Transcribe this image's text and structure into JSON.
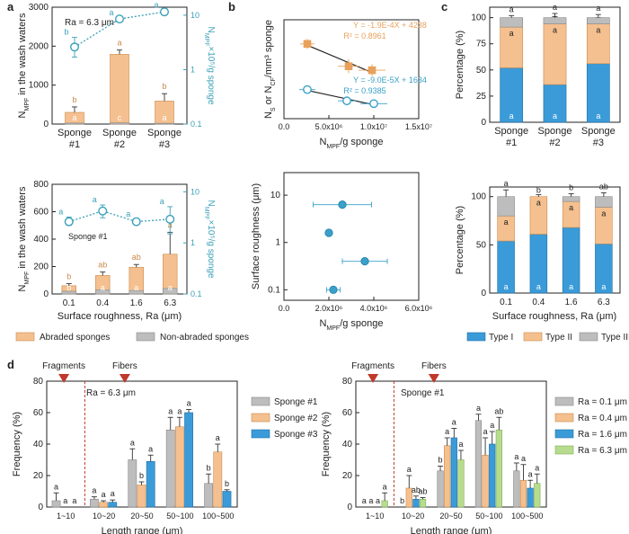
{
  "figure": {
    "panel_labels": [
      "a",
      "b",
      "c",
      "d"
    ]
  },
  "chart_data": [
    {
      "id": "a_top",
      "type": "bar",
      "categories": [
        "Sponge\n#1",
        "Sponge\n#2",
        "Sponge\n#3"
      ],
      "series": [
        {
          "name": "Abraded sponges",
          "values": [
            300,
            1790,
            590
          ],
          "errors": [
            140,
            110,
            190
          ],
          "letters": [
            "b",
            "a",
            "b"
          ]
        },
        {
          "name": "Non-abraded sponges",
          "values": [
            25,
            30,
            20
          ],
          "errors": [
            8,
            8,
            8
          ],
          "letters": [
            "a",
            "c",
            "a"
          ]
        }
      ],
      "line": {
        "name": "N_MPF x 10^5/g sponge",
        "values": [
          2.6,
          8.5,
          11.5
        ],
        "errors_low": [
          0.9,
          0.6,
          0.7
        ],
        "errors_high": [
          1.3,
          0.4,
          0.7
        ],
        "letters": [
          "b",
          "a",
          "a"
        ]
      },
      "annotation": "Ra = 6.3 μm",
      "ylabel": "N_MPF in the wash waters",
      "y2label": "N_MPF x 10^5/g sponge",
      "ylim": [
        0,
        3000
      ],
      "yticks": [
        0,
        1000,
        2000,
        3000
      ],
      "y2lim": [
        0.1,
        14
      ],
      "y2ticks": [
        0.1,
        1,
        10
      ]
    },
    {
      "id": "a_bottom",
      "type": "bar",
      "categories": [
        "0.1",
        "0.4",
        "1.6",
        "6.3"
      ],
      "series": [
        {
          "name": "Abraded sponges",
          "values": [
            60,
            135,
            195,
            290
          ],
          "errors": [
            15,
            25,
            20,
            160
          ],
          "letters": [
            "b",
            "ab",
            "ab",
            "a"
          ]
        },
        {
          "name": "Non-abraded sponges",
          "values": [
            20,
            30,
            25,
            40
          ],
          "errors": [
            8,
            8,
            8,
            10
          ],
          "letters": [
            "b",
            "a",
            "a",
            "a"
          ]
        }
      ],
      "line": {
        "name": "N_MPF x 10^5/g sponge",
        "values": [
          2.6,
          4.2,
          2.6,
          2.9
        ],
        "errors_low": [
          0.4,
          1.1,
          0.3,
          1.4
        ],
        "errors_high": [
          0.6,
          1.3,
          0.3,
          2.2
        ],
        "letters": [
          "a",
          "a",
          "a",
          "a"
        ]
      },
      "annotation": "Sponge #1",
      "xlabel": "Surface roughness, Ra (μm)",
      "ylabel": "N_MPF in the wash waters",
      "y2label": "N_MPF x 10^5/g sponge",
      "ylim": [
        0,
        800
      ],
      "yticks": [
        0,
        200,
        400,
        600,
        800
      ],
      "y2lim": [
        0.1,
        14
      ],
      "y2ticks": [
        0.1,
        1,
        10
      ]
    },
    {
      "id": "b_top",
      "type": "scatter",
      "xlabel": "N_MPF/g sponge",
      "ylabel": "N_S or N_CF/mm3 sponge",
      "xlim": [
        0,
        15000000
      ],
      "xticks": [
        0,
        5000000,
        10000000,
        15000000
      ],
      "xtick_labels": [
        "0.0",
        "5.0x10⁶",
        "1.0x10⁷",
        "1.5x10⁷"
      ],
      "ylim": [
        0,
        5000
      ],
      "series": [
        {
          "name": "N_S",
          "color": "#e8a15a",
          "points": [
            {
              "x": 2600000,
              "y": 3780,
              "xerr": 800000,
              "yerr": 250
            },
            {
              "x": 7200000,
              "y": 2650,
              "xerr": 1200000,
              "yerr": 350
            },
            {
              "x": 9800000,
              "y": 2450,
              "xerr": 1500000,
              "yerr": 300
            }
          ],
          "fit": "Y = -1.9E-4X + 4238",
          "r2": "R² = 0.8961"
        },
        {
          "name": "N_CF",
          "color": "#3aa0c8",
          "points": [
            {
              "x": 2600000,
              "y": 1470,
              "xerr": 900000,
              "yerr": 150
            },
            {
              "x": 7000000,
              "y": 900,
              "xerr": 1000000,
              "yerr": 100
            },
            {
              "x": 10000000,
              "y": 760,
              "xerr": 1500000,
              "yerr": 80
            }
          ],
          "fit": "Y = -9.0E-5X + 1634",
          "r2": "R² = 0.9385"
        }
      ]
    },
    {
      "id": "b_bottom",
      "type": "scatter",
      "xlabel": "N_MPF/g sponge",
      "ylabel": "Surface roughness (μm)",
      "xlim": [
        0,
        6000000
      ],
      "xticks": [
        0,
        2000000,
        4000000,
        6000000
      ],
      "xtick_labels": [
        "0.0",
        "2.0x10⁶",
        "4.0x10⁶",
        "6.0x10⁶"
      ],
      "ylim": [
        0.06,
        30
      ],
      "yticks": [
        0.1,
        1,
        10
      ],
      "yscale": "log",
      "points": [
        {
          "x": 2600000,
          "y": 6.3,
          "xerr": 1300000
        },
        {
          "x": 3600000,
          "y": 0.4,
          "xerr": 1000000
        },
        {
          "x": 2000000,
          "y": 1.6,
          "xerr": 100000
        },
        {
          "x": 2200000,
          "y": 0.1,
          "xerr": 300000
        }
      ]
    },
    {
      "id": "c_top",
      "type": "bar",
      "stacked": true,
      "categories": [
        "Sponge\n#1",
        "Sponge\n#2",
        "Sponge\n#3"
      ],
      "series": [
        {
          "name": "Type I",
          "values": [
            52,
            36,
            56
          ],
          "errors": [
            5,
            7,
            8
          ],
          "letters": [
            "a",
            "a",
            "a"
          ]
        },
        {
          "name": "Type II",
          "values": [
            39,
            58,
            38
          ],
          "errors": [
            4,
            7,
            6
          ],
          "letters": [
            "a",
            "a",
            "a"
          ]
        },
        {
          "name": "Type III",
          "values": [
            9,
            6,
            6
          ],
          "errors": [
            2,
            4,
            3
          ],
          "letters": [
            "a",
            "a",
            "a"
          ]
        }
      ],
      "ylabel": "Percentage (%)",
      "ylim": [
        0,
        110
      ],
      "yticks": [
        0,
        25,
        50,
        75,
        100
      ]
    },
    {
      "id": "c_bottom",
      "type": "bar",
      "stacked": true,
      "categories": [
        "0.1",
        "0.4",
        "1.6",
        "6.3"
      ],
      "series": [
        {
          "name": "Type I",
          "values": [
            54,
            61,
            68,
            51
          ],
          "errors": [
            6,
            14,
            6,
            5
          ],
          "letters": [
            "a",
            "a",
            "a",
            "a"
          ]
        },
        {
          "name": "Type II",
          "values": [
            26,
            39,
            27,
            38
          ],
          "errors": [
            5,
            2,
            3,
            4
          ],
          "letters": [
            "a",
            "a",
            "a",
            "a"
          ]
        },
        {
          "name": "Type III",
          "values": [
            20,
            0,
            5,
            11
          ],
          "errors": [
            7,
            0,
            3,
            4
          ],
          "letters": [
            "a",
            "b",
            "b",
            "ab"
          ]
        }
      ],
      "xlabel": "Surface roughness, Ra (μm)",
      "ylabel": "Percentage (%)",
      "ylim": [
        0,
        110
      ],
      "yticks": [
        0,
        50,
        100
      ]
    },
    {
      "id": "d_left",
      "type": "bar",
      "categories": [
        "1~10",
        "10~20",
        "20~50",
        "50~100",
        "100~500"
      ],
      "series": [
        {
          "name": "Sponge #1",
          "values": [
            4,
            5,
            30,
            49,
            15
          ],
          "errors": [
            5,
            1.5,
            7,
            8,
            6
          ],
          "letters": [
            "a",
            "a",
            "a",
            "a",
            "b"
          ]
        },
        {
          "name": "Sponge #2",
          "values": [
            0,
            3,
            14,
            51,
            35
          ],
          "errors": [
            0,
            1,
            2,
            6,
            5
          ],
          "letters": [
            "a",
            "a",
            "b",
            "a",
            "a"
          ]
        },
        {
          "name": "Sponge #3",
          "values": [
            0,
            3,
            29,
            60,
            10
          ],
          "errors": [
            0,
            1.5,
            4,
            2,
            1
          ],
          "letters": [
            "a",
            "a",
            "a",
            "a",
            "b"
          ]
        }
      ],
      "annotation": "Ra = 6.3 μm",
      "markers": [
        {
          "label": "Fragments",
          "x": "1~10"
        },
        {
          "label": "Fibers",
          "x": "20~50"
        }
      ],
      "xlabel": "Length range (μm)",
      "ylabel": "Frequency (%)",
      "ylim": [
        0,
        80
      ],
      "yticks": [
        0,
        20,
        40,
        60,
        80
      ]
    },
    {
      "id": "d_right",
      "type": "bar",
      "categories": [
        "1~10",
        "10~20",
        "20~50",
        "50~100",
        "100~500"
      ],
      "series": [
        {
          "name": "Ra = 0.1 μm",
          "values": [
            0,
            0,
            23,
            55,
            23
          ],
          "errors": [
            0,
            0,
            3,
            4,
            5
          ],
          "letters": [
            "a",
            "b",
            "b",
            "a",
            "a"
          ]
        },
        {
          "name": "Ra = 0.4 μm",
          "values": [
            0,
            12,
            39,
            33,
            17
          ],
          "errors": [
            0,
            8,
            5,
            11,
            10
          ],
          "letters": [
            "a",
            "a",
            "a",
            "a",
            "a"
          ]
        },
        {
          "name": "Ra = 1.6 μm",
          "values": [
            0,
            5,
            44,
            40,
            12
          ],
          "errors": [
            0,
            2,
            6,
            8,
            5
          ],
          "letters": [
            "a",
            "ab",
            "a",
            "a",
            "a"
          ]
        },
        {
          "name": "Ra = 6.3 μm",
          "values": [
            4,
            5,
            30,
            49,
            15
          ],
          "errors": [
            5,
            1,
            6,
            8,
            6
          ],
          "letters": [
            "a",
            "ab",
            "a",
            "ab",
            "a"
          ]
        }
      ],
      "annotation": "Sponge #1",
      "markers": [
        {
          "label": "Fragments",
          "x": "1~10"
        },
        {
          "label": "Fibers",
          "x": "20~50"
        }
      ],
      "xlabel": "Length range (μm)",
      "ylabel": "Frequency (%)",
      "ylim": [
        0,
        80
      ],
      "yticks": [
        0,
        20,
        40,
        60,
        80
      ]
    }
  ],
  "legends": {
    "a_bottom": [
      "Abraded sponges",
      "Non-abraded sponges"
    ],
    "c": [
      "Type I",
      "Type II",
      "Type III"
    ]
  },
  "colors": {
    "abraded": "#f5c08f",
    "non_abraded": "#bdbdbd",
    "type1": "#3a9bd8",
    "type2": "#f5c08f",
    "type3": "#bdbdbd",
    "line": "#3aa0b8",
    "marker": "#c0392b",
    "sp1": "#bdbdbd",
    "sp2": "#f5c08f",
    "sp3": "#3a9bd8",
    "r4": "#b7dc8f"
  }
}
